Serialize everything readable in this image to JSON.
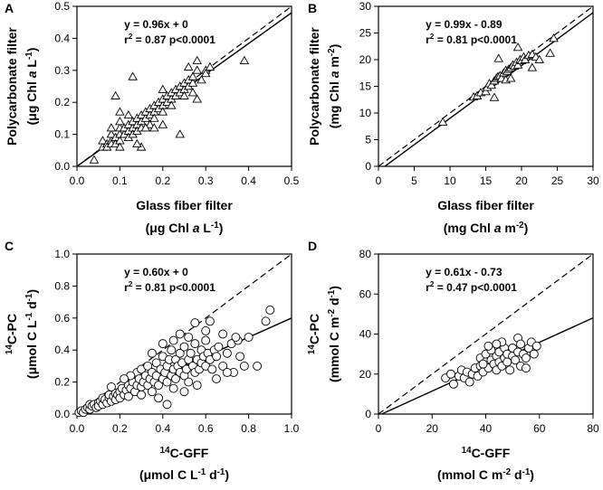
{
  "figure": {
    "panels_description": "Four scatter-plot panels comparing filter measurements",
    "colors": {
      "ink": "#000000",
      "marker_fill": "#ffffff"
    }
  },
  "chart_data": [
    {
      "id": "A",
      "type": "scatter",
      "panel_label": "A",
      "marker": "triangle",
      "xlabel": "Glass fiber filter",
      "xlabel2": [
        "(",
        "μg Chl ",
        "a",
        " L",
        "-1",
        ")"
      ],
      "ylabel": "Polycarbonate filter",
      "ylabel2": [
        "(",
        "μg Chl ",
        "a",
        " L",
        "-1",
        ")"
      ],
      "xlim": [
        0,
        0.5
      ],
      "ylim": [
        0,
        0.5
      ],
      "xticks": [
        "0.0",
        "0.1",
        "0.2",
        "0.3",
        "0.4",
        "0.5"
      ],
      "yticks": [
        "0.0",
        "0.1",
        "0.2",
        "0.3",
        "0.4",
        "0.5"
      ],
      "equation": "y = 0.96x + 0",
      "r2_parts": [
        "r",
        "2",
        " = 0.87 p<0.0001"
      ],
      "fit": {
        "slope": 0.96,
        "intercept": 0
      },
      "identity_line": true,
      "points": [
        [
          0.04,
          0.02
        ],
        [
          0.06,
          0.06
        ],
        [
          0.06,
          0.08
        ],
        [
          0.07,
          0.07
        ],
        [
          0.07,
          0.06
        ],
        [
          0.08,
          0.08
        ],
        [
          0.08,
          0.1
        ],
        [
          0.08,
          0.07
        ],
        [
          0.09,
          0.09
        ],
        [
          0.09,
          0.07
        ],
        [
          0.1,
          0.08
        ],
        [
          0.1,
          0.1
        ],
        [
          0.1,
          0.12
        ],
        [
          0.1,
          0.06
        ],
        [
          0.11,
          0.1
        ],
        [
          0.11,
          0.12
        ],
        [
          0.12,
          0.11
        ],
        [
          0.12,
          0.13
        ],
        [
          0.12,
          0.09
        ],
        [
          0.13,
          0.12
        ],
        [
          0.13,
          0.14
        ],
        [
          0.13,
          0.1
        ],
        [
          0.14,
          0.13
        ],
        [
          0.14,
          0.15
        ],
        [
          0.14,
          0.11
        ],
        [
          0.15,
          0.14
        ],
        [
          0.15,
          0.16
        ],
        [
          0.15,
          0.12
        ],
        [
          0.16,
          0.15
        ],
        [
          0.16,
          0.17
        ],
        [
          0.17,
          0.16
        ],
        [
          0.17,
          0.13
        ],
        [
          0.17,
          0.18
        ],
        [
          0.18,
          0.17
        ],
        [
          0.18,
          0.19
        ],
        [
          0.18,
          0.15
        ],
        [
          0.19,
          0.18
        ],
        [
          0.19,
          0.2
        ],
        [
          0.2,
          0.19
        ],
        [
          0.2,
          0.21
        ],
        [
          0.2,
          0.17
        ],
        [
          0.21,
          0.2
        ],
        [
          0.21,
          0.22
        ],
        [
          0.22,
          0.21
        ],
        [
          0.22,
          0.23
        ],
        [
          0.22,
          0.19
        ],
        [
          0.23,
          0.22
        ],
        [
          0.23,
          0.24
        ],
        [
          0.24,
          0.23
        ],
        [
          0.24,
          0.25
        ],
        [
          0.25,
          0.24
        ],
        [
          0.25,
          0.26
        ],
        [
          0.25,
          0.22
        ],
        [
          0.26,
          0.25
        ],
        [
          0.26,
          0.27
        ],
        [
          0.27,
          0.26
        ],
        [
          0.27,
          0.28
        ],
        [
          0.28,
          0.3
        ],
        [
          0.28,
          0.33
        ],
        [
          0.29,
          0.27
        ],
        [
          0.3,
          0.3
        ],
        [
          0.3,
          0.29
        ],
        [
          0.31,
          0.31
        ],
        [
          0.13,
          0.28
        ],
        [
          0.09,
          0.22
        ],
        [
          0.1,
          0.14
        ],
        [
          0.15,
          0.06
        ],
        [
          0.1,
          0.17
        ],
        [
          0.2,
          0.24
        ],
        [
          0.24,
          0.1
        ],
        [
          0.18,
          0.12
        ],
        [
          0.26,
          0.31
        ],
        [
          0.39,
          0.33
        ],
        [
          0.12,
          0.16
        ],
        [
          0.16,
          0.12
        ],
        [
          0.14,
          0.07
        ],
        [
          0.27,
          0.23
        ],
        [
          0.2,
          0.13
        ],
        [
          0.28,
          0.21
        ],
        [
          0.08,
          0.12
        ]
      ]
    },
    {
      "id": "B",
      "type": "scatter",
      "panel_label": "B",
      "marker": "triangle",
      "xlabel": "Glass fiber filter",
      "xlabel2": [
        "(",
        "mg Chl ",
        "a",
        " m",
        "-2",
        ")"
      ],
      "ylabel": "Polycarbonate filter",
      "ylabel2": [
        "(",
        "mg Chl ",
        "a",
        " m",
        "-2",
        ")"
      ],
      "xlim": [
        0,
        30
      ],
      "ylim": [
        0,
        30
      ],
      "xticks": [
        "0",
        "5",
        "10",
        "15",
        "20",
        "25",
        "30"
      ],
      "yticks": [
        "0",
        "5",
        "10",
        "15",
        "20",
        "25",
        "30"
      ],
      "equation": "y = 0.99x - 0.89",
      "r2_parts": [
        "r",
        "2",
        " = 0.81 p<0.0001"
      ],
      "fit": {
        "slope": 0.99,
        "intercept": -0.89
      },
      "identity_line": true,
      "points": [
        [
          9,
          8.3
        ],
        [
          13.3,
          13
        ],
        [
          13.8,
          13.2
        ],
        [
          14.3,
          13.8
        ],
        [
          15,
          14
        ],
        [
          15.2,
          14.8
        ],
        [
          15.5,
          15.5
        ],
        [
          15.8,
          15.2
        ],
        [
          16.2,
          16
        ],
        [
          16.5,
          16.5
        ],
        [
          16.7,
          16.8
        ],
        [
          17,
          17
        ],
        [
          17.2,
          16.5
        ],
        [
          17.5,
          17.5
        ],
        [
          17.8,
          18
        ],
        [
          18,
          17.8
        ],
        [
          18.2,
          18.2
        ],
        [
          18.5,
          18.5
        ],
        [
          18.8,
          19
        ],
        [
          19,
          18.8
        ],
        [
          19.3,
          19.5
        ],
        [
          19.5,
          19
        ],
        [
          19.8,
          20
        ],
        [
          20,
          19.8
        ],
        [
          20.3,
          20.5
        ],
        [
          20.5,
          20
        ],
        [
          21,
          20.8
        ],
        [
          21.5,
          21
        ],
        [
          22,
          20.5
        ],
        [
          22.5,
          20
        ],
        [
          24.5,
          24
        ],
        [
          24,
          21.2
        ],
        [
          16.8,
          20.2
        ],
        [
          19.5,
          22.3
        ],
        [
          16.2,
          12.9
        ],
        [
          21.5,
          18.5
        ],
        [
          17.8,
          16.2
        ],
        [
          18.5,
          16.5
        ]
      ]
    },
    {
      "id": "C",
      "type": "scatter",
      "panel_label": "C",
      "marker": "circle",
      "xlabel_parts": [
        "14",
        "C-GFF"
      ],
      "xlabel2": [
        "(μmol C L",
        "-1",
        " d",
        "-1",
        ")"
      ],
      "ylabel_parts": [
        "14",
        "C-PC"
      ],
      "ylabel2": [
        "(μmol C L",
        "-1",
        " d",
        "-1",
        ")"
      ],
      "xlim": [
        0,
        1
      ],
      "ylim": [
        0,
        1
      ],
      "xticks": [
        "0.0",
        "0.2",
        "0.4",
        "0.6",
        "0.8",
        "1.0"
      ],
      "yticks": [
        "0.0",
        "0.2",
        "0.4",
        "0.6",
        "0.8",
        "1.0"
      ],
      "equation": "y = 0.60x + 0",
      "r2_parts": [
        "r",
        "2",
        " = 0.81 p<0.0001"
      ],
      "fit": {
        "slope": 0.6,
        "intercept": 0
      },
      "identity_line": true,
      "points": [
        [
          0.01,
          0.01
        ],
        [
          0.02,
          0.02
        ],
        [
          0.03,
          0.01
        ],
        [
          0.04,
          0.03
        ],
        [
          0.05,
          0.04
        ],
        [
          0.06,
          0.03
        ],
        [
          0.06,
          0.06
        ],
        [
          0.07,
          0.05
        ],
        [
          0.08,
          0.06
        ],
        [
          0.09,
          0.04
        ],
        [
          0.1,
          0.07
        ],
        [
          0.1,
          0.05
        ],
        [
          0.11,
          0.08
        ],
        [
          0.12,
          0.06
        ],
        [
          0.12,
          0.1
        ],
        [
          0.13,
          0.09
        ],
        [
          0.14,
          0.07
        ],
        [
          0.15,
          0.1
        ],
        [
          0.15,
          0.12
        ],
        [
          0.16,
          0.08
        ],
        [
          0.17,
          0.11
        ],
        [
          0.18,
          0.13
        ],
        [
          0.18,
          0.09
        ],
        [
          0.19,
          0.12
        ],
        [
          0.2,
          0.14
        ],
        [
          0.2,
          0.1
        ],
        [
          0.21,
          0.16
        ],
        [
          0.22,
          0.12
        ],
        [
          0.23,
          0.15
        ],
        [
          0.24,
          0.18
        ],
        [
          0.24,
          0.11
        ],
        [
          0.25,
          0.16
        ],
        [
          0.26,
          0.2
        ],
        [
          0.27,
          0.14
        ],
        [
          0.28,
          0.18
        ],
        [
          0.28,
          0.26
        ],
        [
          0.29,
          0.22
        ],
        [
          0.3,
          0.17
        ],
        [
          0.3,
          0.28
        ],
        [
          0.31,
          0.2
        ],
        [
          0.32,
          0.24
        ],
        [
          0.33,
          0.18
        ],
        [
          0.33,
          0.3
        ],
        [
          0.34,
          0.22
        ],
        [
          0.35,
          0.26
        ],
        [
          0.35,
          0.14
        ],
        [
          0.36,
          0.2
        ],
        [
          0.37,
          0.32
        ],
        [
          0.37,
          0.24
        ],
        [
          0.38,
          0.18
        ],
        [
          0.39,
          0.28
        ],
        [
          0.4,
          0.22
        ],
        [
          0.4,
          0.36
        ],
        [
          0.41,
          0.26
        ],
        [
          0.42,
          0.2
        ],
        [
          0.42,
          0.3
        ],
        [
          0.43,
          0.34
        ],
        [
          0.44,
          0.24
        ],
        [
          0.44,
          0.4
        ],
        [
          0.45,
          0.28
        ],
        [
          0.46,
          0.22
        ],
        [
          0.46,
          0.34
        ],
        [
          0.47,
          0.3
        ],
        [
          0.48,
          0.26
        ],
        [
          0.48,
          0.38
        ],
        [
          0.49,
          0.32
        ],
        [
          0.5,
          0.24
        ],
        [
          0.5,
          0.42
        ],
        [
          0.51,
          0.28
        ],
        [
          0.52,
          0.34
        ],
        [
          0.52,
          0.2
        ],
        [
          0.53,
          0.38
        ],
        [
          0.54,
          0.3
        ],
        [
          0.55,
          0.26
        ],
        [
          0.55,
          0.44
        ],
        [
          0.56,
          0.34
        ],
        [
          0.57,
          0.28
        ],
        [
          0.58,
          0.4
        ],
        [
          0.58,
          0.32
        ],
        [
          0.59,
          0.36
        ],
        [
          0.6,
          0.3
        ],
        [
          0.6,
          0.46
        ],
        [
          0.61,
          0.38
        ],
        [
          0.62,
          0.34
        ],
        [
          0.63,
          0.28
        ],
        [
          0.64,
          0.4
        ],
        [
          0.65,
          0.36
        ],
        [
          0.66,
          0.42
        ],
        [
          0.68,
          0.3
        ],
        [
          0.7,
          0.38
        ],
        [
          0.72,
          0.44
        ],
        [
          0.73,
          0.26
        ],
        [
          0.75,
          0.46
        ],
        [
          0.76,
          0.36
        ],
        [
          0.78,
          0.3
        ],
        [
          0.8,
          0.48
        ],
        [
          0.84,
          0.3
        ],
        [
          0.88,
          0.58
        ],
        [
          0.9,
          0.65
        ],
        [
          0.55,
          0.57
        ],
        [
          0.48,
          0.5
        ],
        [
          0.52,
          0.48
        ],
        [
          0.6,
          0.52
        ],
        [
          0.45,
          0.46
        ],
        [
          0.4,
          0.44
        ],
        [
          0.35,
          0.38
        ],
        [
          0.25,
          0.24
        ],
        [
          0.22,
          0.22
        ],
        [
          0.16,
          0.17
        ],
        [
          0.3,
          0.12
        ],
        [
          0.38,
          0.1
        ],
        [
          0.45,
          0.16
        ],
        [
          0.5,
          0.14
        ],
        [
          0.56,
          0.18
        ],
        [
          0.65,
          0.22
        ],
        [
          0.7,
          0.26
        ],
        [
          0.62,
          0.58
        ],
        [
          0.68,
          0.5
        ],
        [
          0.74,
          0.48
        ],
        [
          0.42,
          0.06
        ]
      ]
    },
    {
      "id": "D",
      "type": "scatter",
      "panel_label": "D",
      "marker": "circle",
      "xlabel_parts": [
        "14",
        "C-GFF"
      ],
      "xlabel2": [
        "(mmol C m",
        "-2",
        " d",
        "-1",
        ")"
      ],
      "ylabel_parts": [
        "14",
        "C-PC"
      ],
      "ylabel2": [
        "(mmol C m",
        "-2",
        " d",
        "-1",
        ")"
      ],
      "xlim": [
        0,
        80
      ],
      "ylim": [
        0,
        80
      ],
      "xticks": [
        "0",
        "20",
        "40",
        "60",
        "80"
      ],
      "yticks": [
        "0",
        "20",
        "40",
        "60",
        "80"
      ],
      "equation": "y = 0.61x - 0.73",
      "r2_parts": [
        "r",
        "2",
        " = 0.47 p<0.0001"
      ],
      "fit": {
        "slope": 0.61,
        "intercept": -0.73
      },
      "identity_line": true,
      "points": [
        [
          25,
          18
        ],
        [
          27,
          20
        ],
        [
          28,
          15
        ],
        [
          30,
          19
        ],
        [
          31,
          22
        ],
        [
          32,
          18
        ],
        [
          33,
          21
        ],
        [
          34,
          16
        ],
        [
          35,
          20
        ],
        [
          36,
          23
        ],
        [
          37,
          19
        ],
        [
          38,
          24
        ],
        [
          38,
          28
        ],
        [
          39,
          21
        ],
        [
          40,
          26
        ],
        [
          40,
          30
        ],
        [
          41,
          23
        ],
        [
          42,
          27
        ],
        [
          42,
          32
        ],
        [
          43,
          25
        ],
        [
          44,
          29
        ],
        [
          44,
          22
        ],
        [
          45,
          31
        ],
        [
          45,
          26
        ],
        [
          46,
          24
        ],
        [
          47,
          28
        ],
        [
          47,
          33
        ],
        [
          48,
          26
        ],
        [
          48,
          30
        ],
        [
          49,
          22
        ],
        [
          50,
          29
        ],
        [
          50,
          33
        ],
        [
          51,
          27
        ],
        [
          52,
          31
        ],
        [
          52,
          38
        ],
        [
          53,
          24
        ],
        [
          54,
          30
        ],
        [
          55,
          28
        ],
        [
          56,
          33
        ],
        [
          57,
          36
        ],
        [
          58,
          30
        ],
        [
          59,
          34
        ],
        [
          41,
          34
        ],
        [
          46,
          36
        ],
        [
          44,
          35
        ],
        [
          55,
          23
        ],
        [
          39,
          25
        ],
        [
          53,
          35
        ]
      ]
    }
  ]
}
